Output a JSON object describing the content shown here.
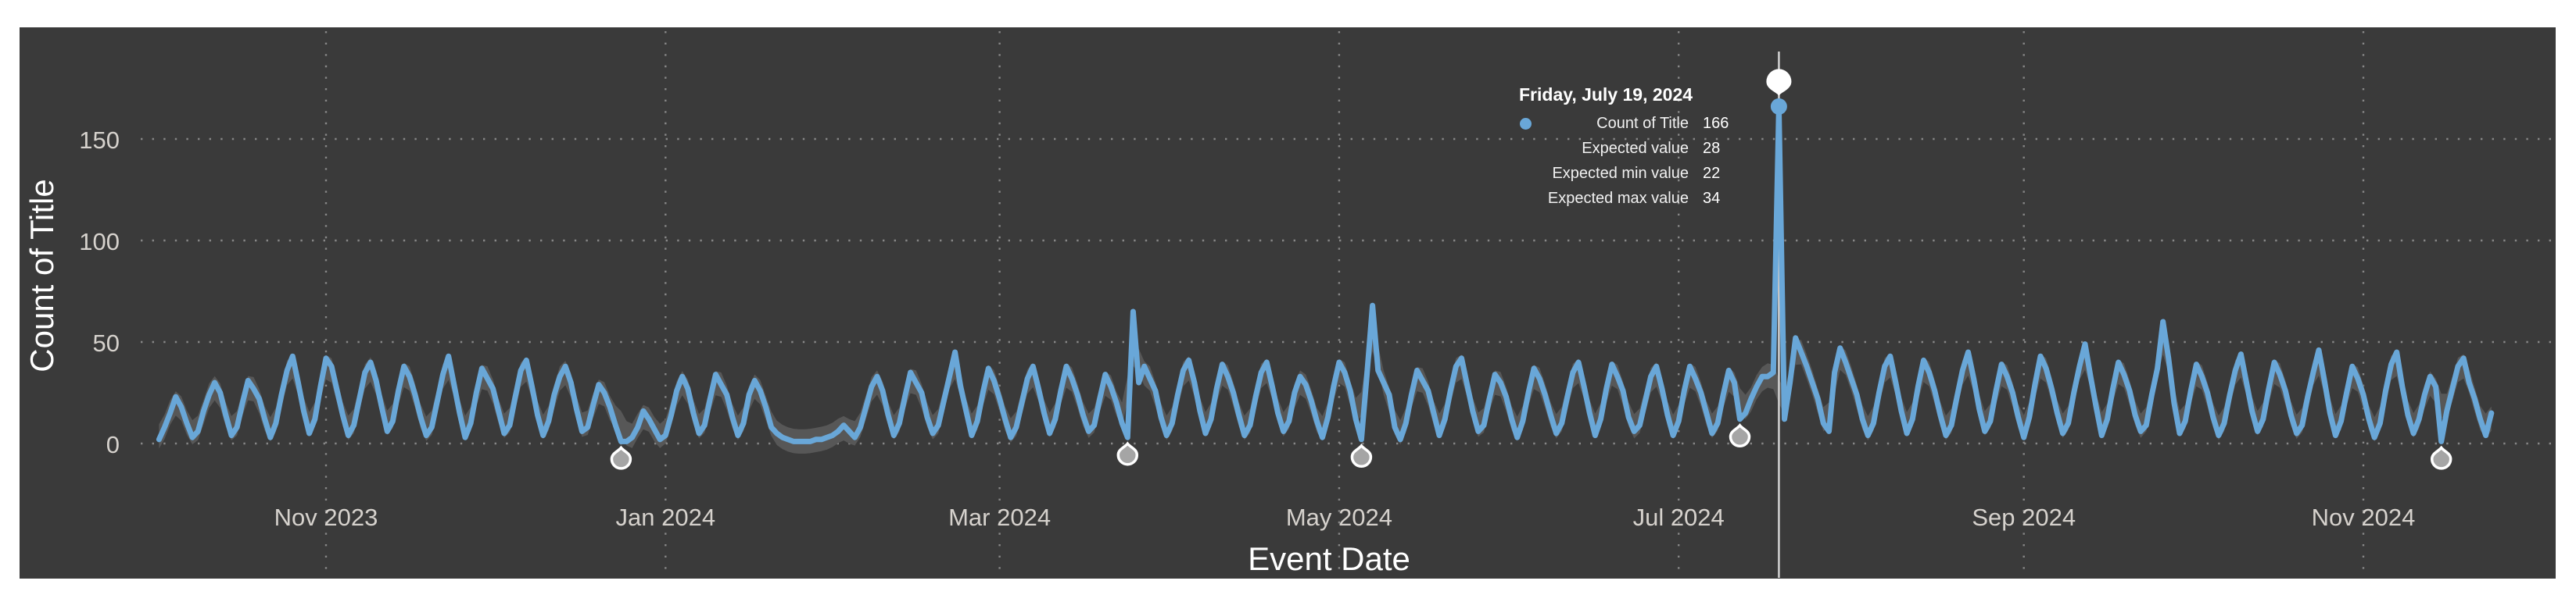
{
  "tooltip": {
    "date": "Friday, July 19, 2024",
    "rows": [
      {
        "label": "Count of Title",
        "value": 166
      },
      {
        "label": "Expected value",
        "value": 28
      },
      {
        "label": "Expected min value",
        "value": 22
      },
      {
        "label": "Expected max value",
        "value": 34
      }
    ]
  },
  "style": {
    "plot_bg": "#3A3A3A",
    "line_color": "#69A7D8",
    "band_color": "#575757",
    "grid_color": "#878787",
    "tick_color": "#D6D2CD",
    "title_color": "#FFFFFF",
    "ref_line_color": "#CCCCCC",
    "anomaly_fill": "#A5A5A5",
    "anomaly_stroke": "#FFFFFF",
    "selected_marker_fill": "#FFFFFF"
  },
  "chart_data": {
    "type": "line",
    "title": "",
    "xlabel": "Event Date",
    "ylabel": "Count of Title",
    "series_name": "Count of Title",
    "x_unit": "day",
    "x_start_date": "2023-10-02",
    "x_end_date": "2024-11-24",
    "y_ticks": [
      0,
      50,
      100,
      150
    ],
    "ylim": [
      0,
      205
    ],
    "grid": "dotted",
    "legend_position": "none",
    "band_halfwidth": 6,
    "x_ticks": [
      {
        "label": "Nov 2023",
        "day": 30
      },
      {
        "label": "Jan 2024",
        "day": 91
      },
      {
        "label": "Mar 2024",
        "day": 151
      },
      {
        "label": "May 2024",
        "day": 212
      },
      {
        "label": "Jul 2024",
        "day": 273
      },
      {
        "label": "Sep 2024",
        "day": 335
      },
      {
        "label": "Nov 2024",
        "day": 396
      }
    ],
    "values": [
      2,
      8,
      15,
      23,
      18,
      10,
      3,
      6,
      16,
      24,
      30,
      25,
      14,
      4,
      8,
      20,
      31,
      27,
      22,
      12,
      3,
      10,
      24,
      36,
      43,
      30,
      16,
      5,
      12,
      28,
      42,
      38,
      26,
      14,
      4,
      9,
      22,
      35,
      40,
      31,
      18,
      6,
      11,
      26,
      38,
      33,
      24,
      13,
      4,
      8,
      21,
      34,
      43,
      29,
      15,
      3,
      10,
      25,
      37,
      32,
      27,
      16,
      5,
      9,
      23,
      36,
      41,
      28,
      14,
      4,
      11,
      24,
      33,
      38,
      30,
      17,
      6,
      8,
      19,
      29,
      25,
      18,
      9,
      1,
      1,
      3,
      8,
      16,
      12,
      7,
      2,
      4,
      14,
      26,
      33,
      27,
      15,
      5,
      9,
      22,
      34,
      29,
      24,
      13,
      4,
      10,
      24,
      31,
      26,
      18,
      8,
      5,
      3,
      2,
      1,
      1,
      1,
      1,
      2,
      2,
      3,
      4,
      6,
      9,
      6,
      3,
      8,
      18,
      28,
      33,
      26,
      14,
      4,
      10,
      23,
      35,
      30,
      25,
      13,
      5,
      9,
      21,
      33,
      45,
      28,
      16,
      4,
      11,
      25,
      37,
      31,
      22,
      12,
      3,
      8,
      20,
      32,
      38,
      27,
      15,
      5,
      12,
      26,
      38,
      32,
      24,
      14,
      6,
      9,
      22,
      34,
      28,
      20,
      10,
      3,
      65,
      30,
      38,
      32,
      26,
      13,
      4,
      10,
      24,
      36,
      41,
      30,
      16,
      5,
      12,
      27,
      39,
      33,
      25,
      14,
      4,
      9,
      23,
      35,
      40,
      28,
      15,
      6,
      11,
      25,
      33,
      29,
      21,
      11,
      3,
      13,
      28,
      40,
      35,
      26,
      12,
      2,
      34,
      68,
      36,
      30,
      24,
      8,
      2,
      10,
      24,
      36,
      31,
      26,
      15,
      4,
      12,
      26,
      38,
      42,
      29,
      16,
      6,
      9,
      22,
      34,
      30,
      23,
      12,
      3,
      11,
      25,
      37,
      32,
      24,
      14,
      5,
      10,
      23,
      35,
      40,
      28,
      15,
      4,
      12,
      27,
      39,
      33,
      26,
      13,
      6,
      9,
      21,
      33,
      38,
      27,
      14,
      4,
      11,
      26,
      38,
      32,
      25,
      15,
      5,
      10,
      24,
      36,
      30,
      12,
      15,
      22,
      28,
      33,
      33,
      35,
      166,
      12,
      30,
      52,
      45,
      38,
      30,
      22,
      10,
      6,
      35,
      47,
      40,
      32,
      24,
      12,
      4,
      10,
      25,
      38,
      43,
      30,
      16,
      5,
      12,
      28,
      41,
      35,
      26,
      14,
      4,
      9,
      23,
      36,
      45,
      32,
      17,
      6,
      11,
      26,
      39,
      33,
      25,
      13,
      3,
      13,
      29,
      43,
      37,
      27,
      15,
      5,
      10,
      25,
      38,
      49,
      33,
      18,
      4,
      12,
      27,
      40,
      34,
      26,
      14,
      6,
      9,
      24,
      37,
      60,
      42,
      20,
      5,
      11,
      26,
      39,
      33,
      25,
      13,
      4,
      10,
      24,
      36,
      44,
      30,
      16,
      6,
      12,
      27,
      40,
      34,
      26,
      14,
      5,
      9,
      23,
      35,
      46,
      31,
      15,
      4,
      11,
      25,
      38,
      32,
      24,
      12,
      3,
      10,
      26,
      39,
      45,
      28,
      14,
      5,
      12,
      24,
      33,
      28,
      1,
      16,
      27,
      38,
      42,
      30,
      22,
      12,
      4,
      15
    ],
    "anomalies": [
      {
        "day": 83,
        "expected": 15
      },
      {
        "day": 174,
        "expected": 17
      },
      {
        "day": 216,
        "expected": 16
      },
      {
        "day": 284,
        "expected": 20
      },
      {
        "day": 291,
        "value": 166,
        "expected": 28,
        "expected_min": 22,
        "expected_max": 34,
        "selected": true
      },
      {
        "day": 410,
        "expected": 15
      }
    ]
  }
}
